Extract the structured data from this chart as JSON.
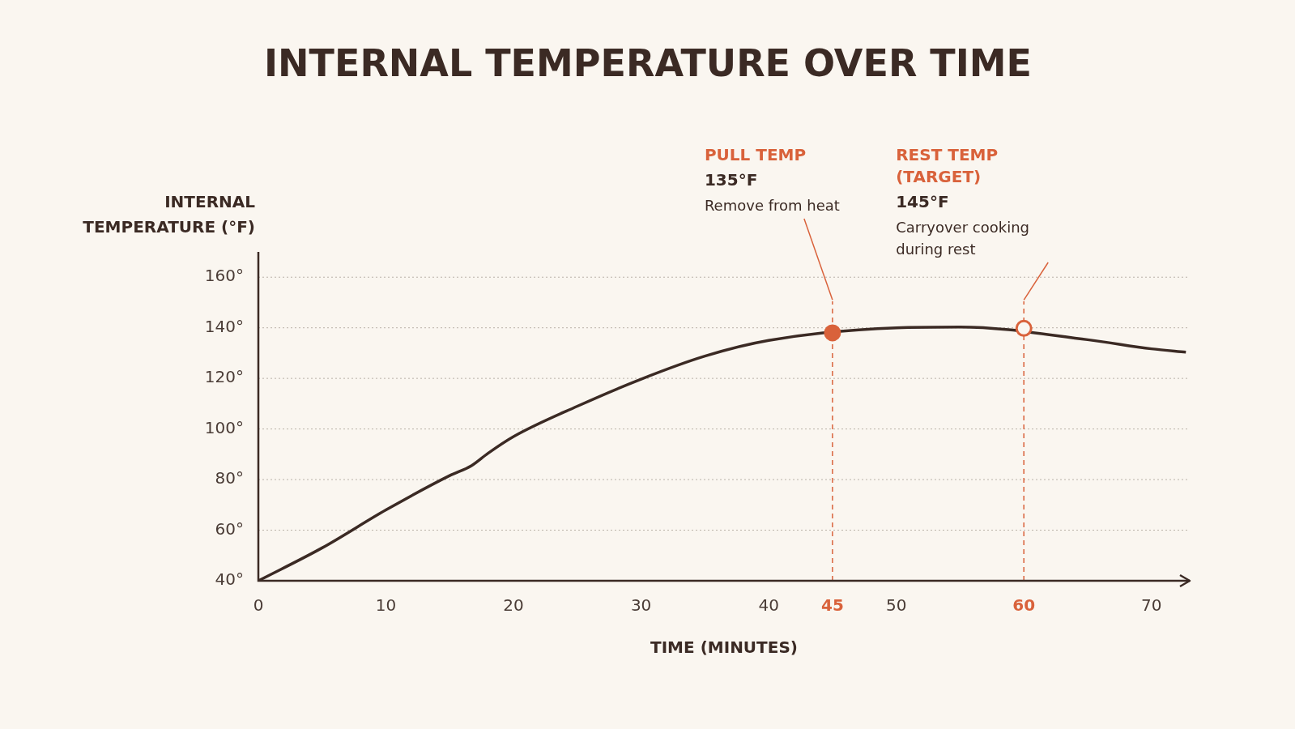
{
  "chart_data": {
    "type": "line",
    "title": "INTERNAL TEMPERATURE OVER TIME",
    "xlabel": "TIME (MINUTES)",
    "ylabel": "INTERNAL\nTEMPERATURE (°F)",
    "xlim": [
      0,
      73
    ],
    "ylim": [
      40,
      170
    ],
    "xticks": [
      0,
      10,
      20,
      30,
      40,
      45,
      50,
      60,
      70
    ],
    "yticks": [
      {
        "value": 40,
        "label": "40°"
      },
      {
        "value": 60,
        "label": "60°"
      },
      {
        "value": 80,
        "label": "80°"
      },
      {
        "value": 100,
        "label": "100°"
      },
      {
        "value": 120,
        "label": "120°"
      },
      {
        "value": 140,
        "label": "140°"
      },
      {
        "value": 160,
        "label": "160°"
      }
    ],
    "grid": "y",
    "legend": false,
    "marker": "none",
    "line_style": "solid",
    "series": [
      {
        "color": "#3b2a24",
        "x": [
          0,
          5,
          10,
          15,
          16.7,
          18,
          20,
          25,
          30,
          35,
          40,
          50,
          55,
          65,
          70,
          72.7
        ],
        "values": [
          40,
          53,
          68,
          81.6,
          85.5,
          90.4,
          97,
          109,
          119.7,
          128.8,
          135,
          140,
          140.3,
          135.3,
          131.7,
          130.4
        ]
      },
      {
        "type": "scatter",
        "marker": "circle",
        "color": "#d9623b",
        "colors": [
          "#d9623b",
          "#faf6f0"
        ],
        "x": [
          45,
          60
        ],
        "values": [
          138,
          139.8
        ]
      }
    ],
    "ref_lines": [
      {
        "axis": "x",
        "value": 45,
        "color": "#d9623b",
        "line_style": "dashed"
      },
      {
        "axis": "x",
        "value": 60,
        "color": "#d9623b",
        "line_style": "dashed"
      }
    ],
    "annotations": [
      {
        "text": "PULL TEMP\n135°F\nRemove from heat",
        "x": 45,
        "y": 151
      },
      {
        "text": "REST TEMP (TARGET)\n145°F\nCarryover cooking during rest",
        "x": 60,
        "y": 151
      }
    ]
  }
}
